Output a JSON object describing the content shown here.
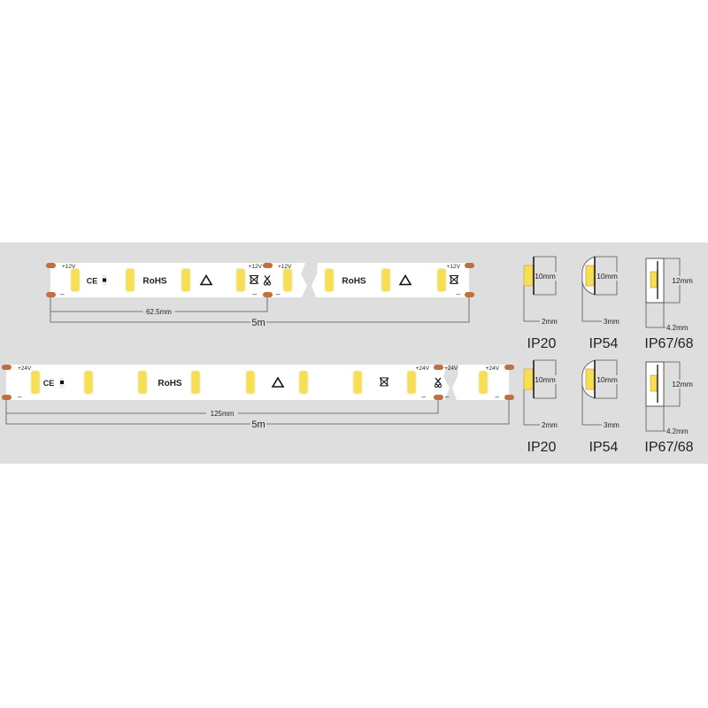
{
  "colors": {
    "background": "#ffffff",
    "band": "#dedede",
    "strip": "#ffffff",
    "led": "#f6df52",
    "pad": "#c0703e",
    "line": "#555555"
  },
  "strips": [
    {
      "voltage_label": "+12V",
      "minus_label": "–",
      "ce_mark": "CE",
      "rohs_mark": "RoHS",
      "segment_length": "62.5mm",
      "total_length": "5m",
      "icons": [
        "ce-mark-icon",
        "chip-icon",
        "esd-warning-icon",
        "weee-bin-icon",
        "scissors-icon"
      ]
    },
    {
      "voltage_label": "+24V",
      "minus_label": "–",
      "ce_mark": "CE",
      "rohs_mark": "RoHS",
      "segment_length": "125mm",
      "total_length": "5m",
      "icons": [
        "ce-mark-icon",
        "chip-icon",
        "esd-warning-icon",
        "weee-bin-icon",
        "scissors-icon"
      ]
    }
  ],
  "profile_rows": [
    [
      {
        "width": "10mm",
        "depth": "2mm",
        "rating": "IP20"
      },
      {
        "width": "10mm",
        "depth": "3mm",
        "rating": "IP54"
      },
      {
        "width": "12mm",
        "depth": "4.2mm",
        "rating": "IP67/68"
      }
    ],
    [
      {
        "width": "10mm",
        "depth": "2mm",
        "rating": "IP20"
      },
      {
        "width": "10mm",
        "depth": "3mm",
        "rating": "IP54"
      },
      {
        "width": "12mm",
        "depth": "4.2mm",
        "rating": "IP67/68"
      }
    ]
  ]
}
